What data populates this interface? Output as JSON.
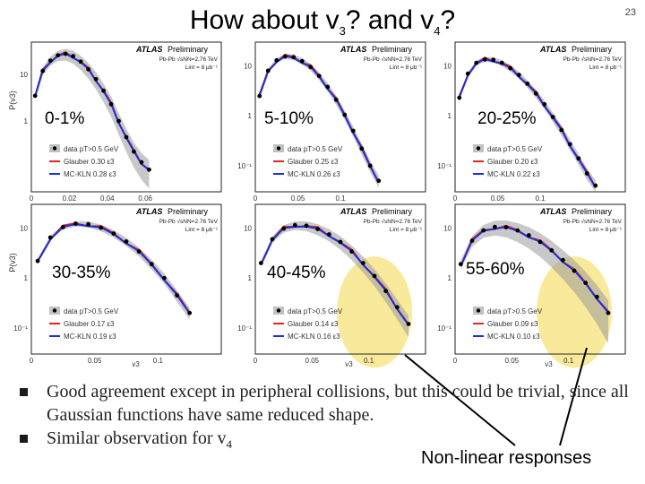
{
  "slide": {
    "title_prefix": "How about v",
    "title_sub1": "3",
    "title_middle": "? and v",
    "title_sub2": "4",
    "title_suffix": "?",
    "page_number": "23"
  },
  "bullets": [
    {
      "text": "Good agreement except in peripheral collisions, but this could be trivial, since all Gaussian functions have same reduced shape."
    },
    {
      "text_prefix": "Similar observation for v",
      "text_sub": "4"
    }
  ],
  "annotation": "Non-linear responses",
  "colors": {
    "data": "#000000",
    "glauber": "#e5251b",
    "mckln": "#1d2fd8",
    "band": "#9a9a9a",
    "highlight": "#f8e58a"
  },
  "chart_data": [
    {
      "type": "line",
      "centrality": "0-1%",
      "ylabel": "P(v3)",
      "xlim": [
        0,
        0.1
      ],
      "ylog": true,
      "ylim": [
        0.03,
        50
      ],
      "x_ticks": [
        "0",
        "0.02",
        "0.04",
        "0.06"
      ],
      "y_ticks": [
        "10",
        "1"
      ],
      "atlas": "ATLAS",
      "preliminary": "Preliminary",
      "info": [
        "Pb-Pb √sNN=2.76 TeV",
        "Lint = 8 μb⁻¹"
      ],
      "legend": [
        "data pT>0.5 GeV",
        "Glauber 0.30 ε3",
        "MC-KLN 0.28 ε3"
      ],
      "data_x": [
        0.002,
        0.006,
        0.01,
        0.014,
        0.018,
        0.022,
        0.026,
        0.03,
        0.034,
        0.038,
        0.042,
        0.046,
        0.05,
        0.054,
        0.058,
        0.062
      ],
      "data_y": [
        3.5,
        12,
        20,
        26,
        28,
        25,
        19,
        13,
        8,
        4.5,
        2.3,
        1.0,
        0.45,
        0.22,
        0.13,
        0.09
      ],
      "band_rel": 0.4,
      "highlight": false
    },
    {
      "type": "line",
      "centrality": "5-10%",
      "ylabel": "",
      "xlim": [
        0,
        0.2
      ],
      "ylog": true,
      "ylim": [
        0.03,
        30
      ],
      "x_ticks": [
        "0",
        "0.05",
        "0.1"
      ],
      "y_ticks": [
        "10",
        "1",
        "10⁻¹"
      ],
      "atlas": "ATLAS",
      "preliminary": "Preliminary",
      "info": [
        "Pb-Pb √sNN=2.76 TeV",
        "Lint = 8 μb⁻¹"
      ],
      "legend": [
        "data pT>0.5 GeV",
        "Glauber 0.25 ε3",
        "MC-KLN 0.26 ε3"
      ],
      "data_x": [
        0.005,
        0.015,
        0.025,
        0.035,
        0.045,
        0.055,
        0.065,
        0.075,
        0.085,
        0.095,
        0.105,
        0.115,
        0.125,
        0.135,
        0.145
      ],
      "data_y": [
        2.5,
        8,
        13,
        15.5,
        15,
        12.5,
        9.5,
        6.3,
        3.8,
        2.1,
        1.05,
        0.5,
        0.22,
        0.1,
        0.05
      ],
      "band_rel": 0.18,
      "highlight": false
    },
    {
      "type": "line",
      "centrality": "20-25%",
      "ylabel": "",
      "xlim": [
        0,
        0.2
      ],
      "ylog": true,
      "ylim": [
        0.03,
        30
      ],
      "x_ticks": [
        "0",
        "0.05",
        "0.1"
      ],
      "y_ticks": [
        "10",
        "1",
        "10⁻¹"
      ],
      "atlas": "ATLAS",
      "preliminary": "Preliminary",
      "info": [
        "Pb-Pb √sNN=2.76 TeV",
        "Lint = 8 μb⁻¹"
      ],
      "legend": [
        "data pT>0.5 GeV",
        "Glauber 0.20 ε3",
        "MC-KLN 0.22 ε3"
      ],
      "data_x": [
        0.005,
        0.015,
        0.025,
        0.035,
        0.045,
        0.055,
        0.065,
        0.075,
        0.085,
        0.095,
        0.105,
        0.115,
        0.125,
        0.135,
        0.145,
        0.155,
        0.165
      ],
      "data_y": [
        2.3,
        7,
        11.5,
        13.5,
        13.3,
        11.5,
        9,
        6.6,
        4.4,
        2.8,
        1.7,
        0.95,
        0.52,
        0.27,
        0.14,
        0.07,
        0.04
      ],
      "band_rel": 0.18,
      "highlight": false
    },
    {
      "type": "line",
      "centrality": "30-35%",
      "ylabel": "P(v3)",
      "xlim": [
        0,
        0.15
      ],
      "ylog": true,
      "ylim": [
        0.03,
        30
      ],
      "x_ticks": [
        "0",
        "0.05",
        "0.1"
      ],
      "y_ticks": [
        "10",
        "1",
        "10⁻¹"
      ],
      "atlas": "ATLAS",
      "preliminary": "Preliminary",
      "info": [
        "Pb-Pb √sNN=2.76 TeV",
        "Lint = 8 μb⁻¹"
      ],
      "legend": [
        "data pT>0.5 GeV",
        "Glauber 0.17 ε3",
        "MC-KLN 0.19 ε3"
      ],
      "xlabel": "v3",
      "data_x": [
        0.005,
        0.015,
        0.025,
        0.035,
        0.045,
        0.055,
        0.065,
        0.075,
        0.085,
        0.095,
        0.105,
        0.115,
        0.125
      ],
      "data_y": [
        2.2,
        6.5,
        10.5,
        12.3,
        12,
        10.2,
        7.8,
        5.4,
        3.4,
        1.9,
        1.0,
        0.45,
        0.2
      ],
      "band_rel": 0.18,
      "highlight": false
    },
    {
      "type": "line",
      "centrality": "40-45%",
      "ylabel": "",
      "xlim": [
        0,
        0.15
      ],
      "ylog": true,
      "ylim": [
        0.03,
        30
      ],
      "x_ticks": [
        "0",
        "0.05",
        "0.1"
      ],
      "y_ticks": [
        "10",
        "1",
        "10⁻¹"
      ],
      "atlas": "ATLAS",
      "preliminary": "Preliminary",
      "info": [
        "Pb-Pb √sNN=2.76 TeV",
        "Lint = 8 μb⁻¹"
      ],
      "legend": [
        "data pT>0.5 GeV",
        "Glauber 0.14 ε3",
        "MC-KLN 0.16 ε3"
      ],
      "xlabel": "v3",
      "data_x": [
        0.005,
        0.015,
        0.025,
        0.035,
        0.045,
        0.055,
        0.065,
        0.075,
        0.085,
        0.095,
        0.105,
        0.115,
        0.125,
        0.135
      ],
      "data_y": [
        2.0,
        6.0,
        9.8,
        11.5,
        11.2,
        9.6,
        7.5,
        5.3,
        3.4,
        2.0,
        1.1,
        0.55,
        0.26,
        0.12
      ],
      "band_rel": 0.3,
      "highlight": true
    },
    {
      "type": "line",
      "centrality": "55-60%",
      "ylabel": "",
      "xlim": [
        0,
        0.15
      ],
      "ylog": true,
      "ylim": [
        0.03,
        30
      ],
      "x_ticks": [
        "0",
        "0.05",
        "0.1"
      ],
      "y_ticks": [
        "10",
        "1",
        "10⁻¹"
      ],
      "atlas": "ATLAS",
      "preliminary": "Preliminary",
      "info": [
        "Pb-Pb √sNN=2.76 TeV",
        "Lint = 8 μb⁻¹"
      ],
      "legend": [
        "data pT>0.5 GeV",
        "Glauber 0.09 ε3",
        "MC-KLN 0.10 ε3"
      ],
      "xlabel": "v3",
      "data_x": [
        0.005,
        0.015,
        0.025,
        0.035,
        0.045,
        0.055,
        0.065,
        0.075,
        0.085,
        0.095,
        0.105,
        0.115,
        0.125,
        0.135
      ],
      "data_y": [
        1.9,
        5.6,
        9.0,
        10.6,
        10.4,
        9.0,
        7.2,
        5.3,
        3.6,
        2.3,
        1.4,
        0.8,
        0.42,
        0.2
      ],
      "band_rel": 0.5,
      "highlight": true
    }
  ]
}
